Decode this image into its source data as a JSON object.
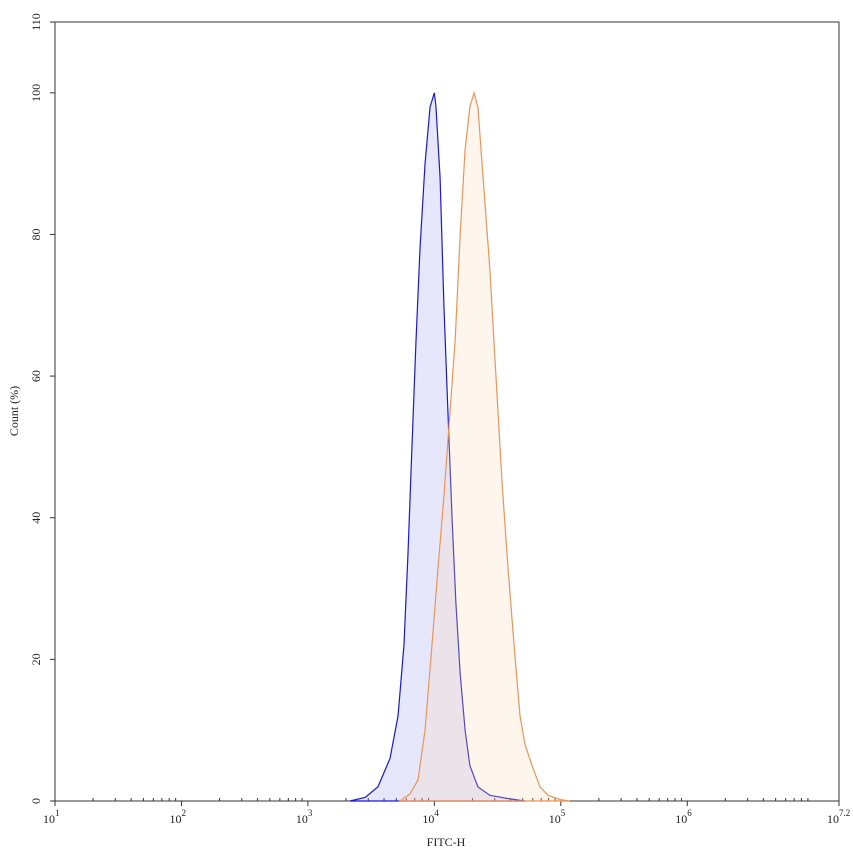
{
  "chart_data": {
    "type": "histogram-overlay",
    "x_label": "FITC-H",
    "y_label": "Count (%)",
    "xscale": "log",
    "xlim": [
      10,
      15848931.92
    ],
    "xticks": [
      {
        "value": 10,
        "label": "10",
        "sup": "1"
      },
      {
        "value": 100,
        "label": "10",
        "sup": "2"
      },
      {
        "value": 1000,
        "label": "10",
        "sup": "3"
      },
      {
        "value": 10000,
        "label": "10",
        "sup": "4"
      },
      {
        "value": 100000,
        "label": "10",
        "sup": "5"
      },
      {
        "value": 1000000,
        "label": "10",
        "sup": "6"
      },
      {
        "value": 15848931.92,
        "label": "10",
        "sup": "7.2"
      }
    ],
    "ylim": [
      0,
      110
    ],
    "yticks": [
      0,
      20,
      40,
      60,
      80,
      100,
      110
    ],
    "series": [
      {
        "color": "#1a1acc",
        "fill": "rgba(110,110,235,0.17)",
        "x": [
          2150,
          2830,
          3580,
          4460,
          5160,
          5750,
          6190,
          6650,
          7160,
          7700,
          8440,
          9250,
          10000,
          10300,
          11100,
          11900,
          12800,
          13800,
          14800,
          16000,
          17500,
          19100,
          22100,
          27500,
          39600,
          52100
        ],
        "values": [
          0,
          0.5,
          2,
          6,
          12,
          22,
          35,
          50,
          65,
          78,
          90,
          98,
          100,
          98,
          88,
          70,
          55,
          40,
          28,
          18,
          10,
          5,
          2,
          0.8,
          0.3,
          0
        ]
      },
      {
        "color": "#e8955a",
        "fill": "rgba(250,215,180,0.25)",
        "x": [
          5350,
          6420,
          7430,
          8440,
          9570,
          10700,
          11900,
          13300,
          14600,
          16000,
          17500,
          19100,
          20600,
          22100,
          24300,
          27500,
          30700,
          34300,
          38200,
          42700,
          47600,
          52100,
          59200,
          68400,
          79200,
          98600,
          118000
        ],
        "values": [
          0,
          1,
          3,
          10,
          22,
          33,
          43,
          55,
          65,
          80,
          92,
          98,
          100,
          98,
          88,
          75,
          60,
          45,
          33,
          22,
          12,
          8,
          5,
          2,
          0.8,
          0.2,
          0
        ]
      }
    ]
  }
}
